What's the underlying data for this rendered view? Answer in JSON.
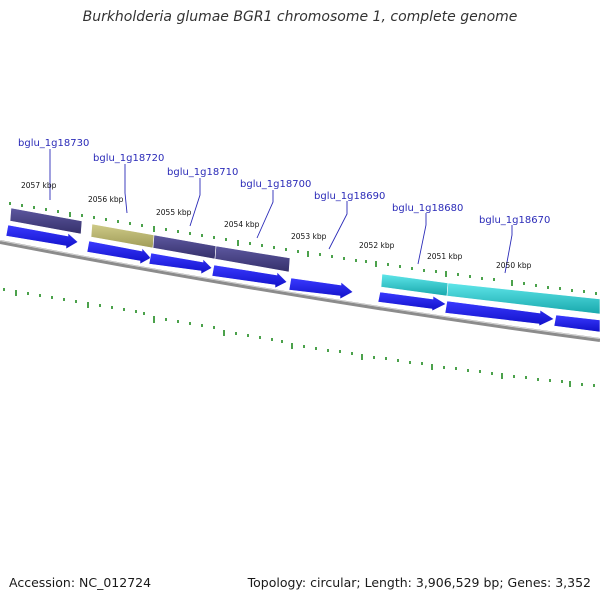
{
  "title": "Burkholderia glumae BGR1 chromosome 1, complete genome",
  "footer": {
    "accession": "Accession: NC_012724",
    "stats": "Topology: circular; Length: 3,906,529 bp; Genes: 3,352"
  },
  "colors": {
    "backbone": "#8c8c8c",
    "forward_arrow": "#1f1ff2",
    "feature_slate": "#45407f",
    "feature_khaki": "#b8b46e",
    "feature_cyan": "#25c8cc",
    "tick": "#1f8a1f",
    "label": "#2b2bb8"
  },
  "kbp_labels": [
    "2057 kbp",
    "2056 kbp",
    "2055 kbp",
    "2054 kbp",
    "2053 kbp",
    "2052 kbp",
    "2051 kbp",
    "2050 kbp"
  ],
  "genes": [
    {
      "name": "bglu_1g18730"
    },
    {
      "name": "bglu_1g18720"
    },
    {
      "name": "bglu_1g18710"
    },
    {
      "name": "bglu_1g18700"
    },
    {
      "name": "bglu_1g18690"
    },
    {
      "name": "bglu_1g18680"
    },
    {
      "name": "bglu_1g18670"
    }
  ]
}
